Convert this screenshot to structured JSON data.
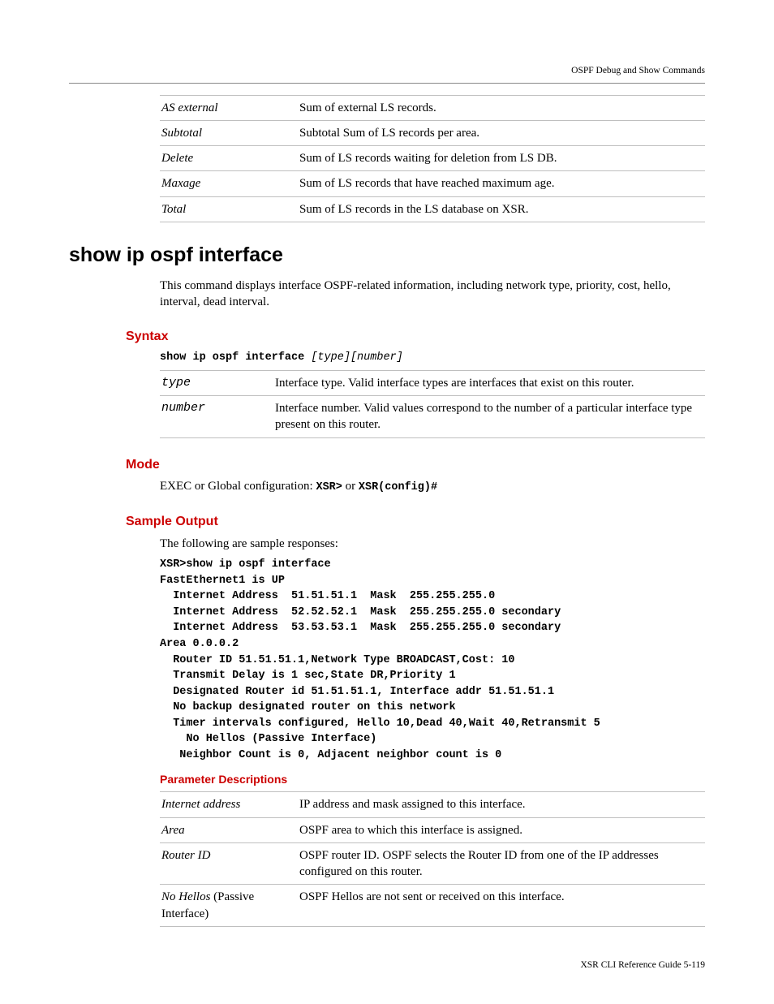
{
  "header": {
    "right": "OSPF Debug and Show Commands"
  },
  "footer": {
    "right": "XSR CLI Reference Guide    5-119"
  },
  "topTable": {
    "rows": [
      {
        "k": "AS external",
        "v": "Sum of external LS records."
      },
      {
        "k": "Subtotal",
        "v": "Subtotal Sum of LS records per area."
      },
      {
        "k": "Delete",
        "v": "Sum of LS records waiting for deletion from LS DB."
      },
      {
        "k": "Maxage",
        "v": "Sum of LS records that have reached maximum age."
      },
      {
        "k": "Total",
        "v": "Sum of LS records in the LS database on XSR."
      }
    ]
  },
  "command": {
    "title": "show ip ospf interface",
    "desc": "This command displays interface OSPF-related information, including network type, priority, cost, hello, interval, dead interval."
  },
  "syntax": {
    "heading": "Syntax",
    "cmd_bold": "show ip ospf interface",
    "cmd_args": " [type][number]",
    "rows": [
      {
        "k": "type",
        "v": "Interface type. Valid interface types are interfaces that exist on this router."
      },
      {
        "k": "number",
        "v": "Interface number. Valid values correspond to the number of a particular interface type present on this router."
      }
    ]
  },
  "mode": {
    "heading": "Mode",
    "prefix": "EXEC or Global configuration: ",
    "code1": "XSR>",
    "mid": "  or  ",
    "code2": "XSR(config)#"
  },
  "sample": {
    "heading": "Sample Output",
    "intro": "The following are sample responses:",
    "code": "XSR>show ip ospf interface\nFastEthernet1 is UP\n  Internet Address  51.51.51.1  Mask  255.255.255.0\n  Internet Address  52.52.52.1  Mask  255.255.255.0 secondary\n  Internet Address  53.53.53.1  Mask  255.255.255.0 secondary\nArea 0.0.0.2\n  Router ID 51.51.51.1,Network Type BROADCAST,Cost: 10\n  Transmit Delay is 1 sec,State DR,Priority 1\n  Designated Router id 51.51.51.1, Interface addr 51.51.51.1\n  No backup designated router on this network\n  Timer intervals configured, Hello 10,Dead 40,Wait 40,Retransmit 5\n    No Hellos (Passive Interface)\n   Neighbor Count is 0, Adjacent neighbor count is 0"
  },
  "paramDesc": {
    "heading": "Parameter Descriptions",
    "rows": [
      {
        "k": "Internet address",
        "k_html": "<span class=\"ital\">Internet address</span>",
        "v": "IP address and mask assigned to this interface."
      },
      {
        "k": "Area",
        "k_html": "<span class=\"ital\">Area</span>",
        "v": "OSPF area to which this interface is assigned."
      },
      {
        "k": "Router ID",
        "k_html": "<span class=\"ital\">Router ID</span>",
        "v": "OSPF router ID. OSPF selects the Router ID from one of the IP addresses configured on this router."
      },
      {
        "k": "No Hellos (Passive Interface)",
        "k_html": "<span class=\"ital\">No Hellos</span> (Passive Interface)",
        "v": "OSPF Hellos are not sent or received on this interface."
      }
    ]
  },
  "colors": {
    "heading_red": "#cc0000",
    "rule_gray": "#bfbfbf",
    "text": "#000000",
    "background": "#ffffff"
  },
  "fonts": {
    "body": "Palatino/serif",
    "headings": "Arial/sans-serif",
    "code": "Courier New/monospace"
  }
}
